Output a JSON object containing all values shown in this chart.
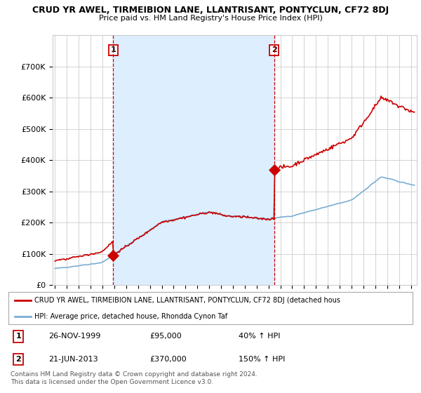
{
  "title": "CRUD YR AWEL, TIRMEIBION LANE, LLANTRISANT, PONTYCLUN, CF72 8DJ",
  "subtitle": "Price paid vs. HM Land Registry's House Price Index (HPI)",
  "legend_line1": "CRUD YR AWEL, TIRMEIBION LANE, LLANTRISANT, PONTYCLUN, CF72 8DJ (detached hous",
  "legend_line2": "HPI: Average price, detached house, Rhondda Cynon Taf",
  "annotation1_label": "1",
  "annotation1_date": "26-NOV-1999",
  "annotation1_price": "£95,000",
  "annotation1_hpi": "40% ↑ HPI",
  "annotation2_label": "2",
  "annotation2_date": "21-JUN-2013",
  "annotation2_price": "£370,000",
  "annotation2_hpi": "150% ↑ HPI",
  "footer": "Contains HM Land Registry data © Crown copyright and database right 2024.\nThis data is licensed under the Open Government Licence v3.0.",
  "ylim": [
    0,
    800000
  ],
  "yticks": [
    0,
    100000,
    200000,
    300000,
    400000,
    500000,
    600000,
    700000
  ],
  "ytick_labels": [
    "£0",
    "£100K",
    "£200K",
    "£300K",
    "£400K",
    "£500K",
    "£600K",
    "£700K"
  ],
  "red_color": "#cc0000",
  "blue_color": "#7aadd4",
  "dashed_color": "#cc0000",
  "grid_color": "#cccccc",
  "shade_color": "#ddeeff",
  "background_color": "#ffffff",
  "sale1_x": 1999.9,
  "sale1_y": 95000,
  "sale2_x": 2013.47,
  "sale2_y": 370000,
  "xmin": 1994.8,
  "xmax": 2025.5,
  "xtick_years": [
    1995,
    1996,
    1997,
    1998,
    1999,
    2000,
    2001,
    2002,
    2003,
    2004,
    2005,
    2006,
    2007,
    2008,
    2009,
    2010,
    2011,
    2012,
    2013,
    2014,
    2015,
    2016,
    2017,
    2018,
    2019,
    2020,
    2021,
    2022,
    2023,
    2024,
    2025
  ]
}
